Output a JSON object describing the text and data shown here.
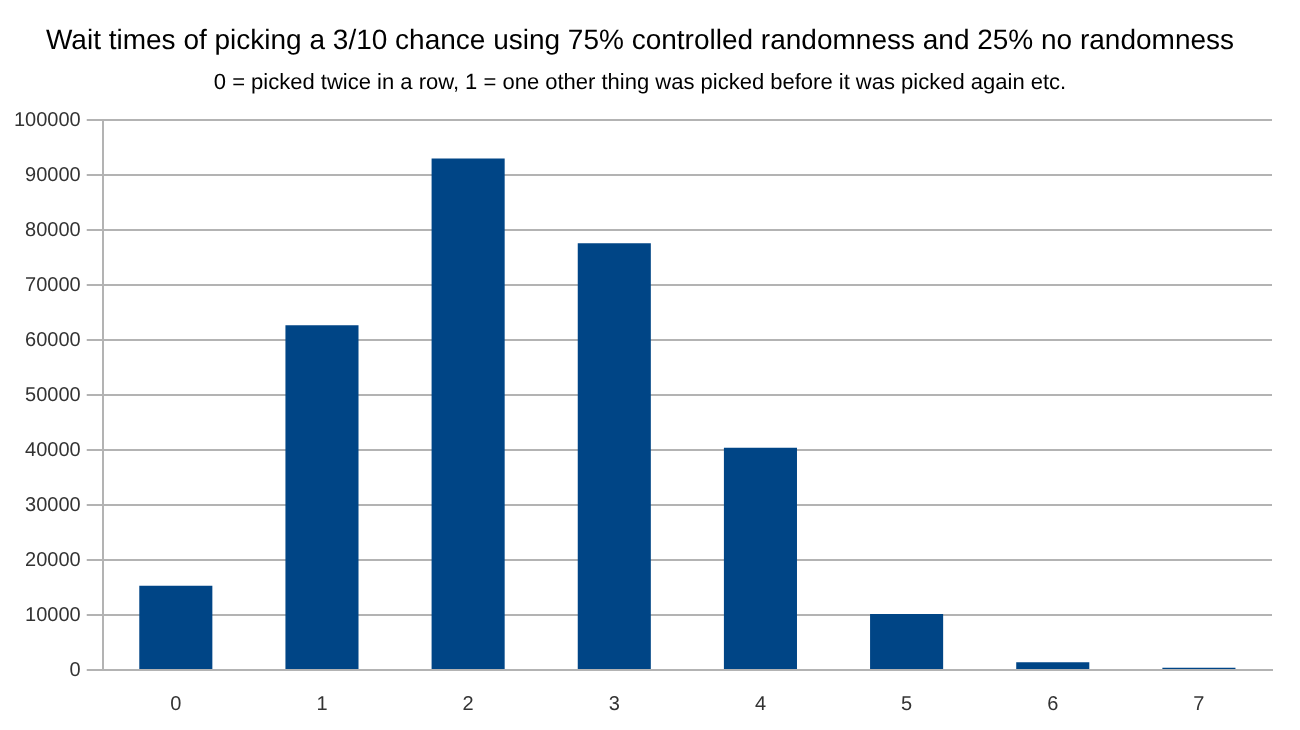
{
  "chart_data": {
    "type": "bar",
    "title": "Wait times of picking a 3/10 chance using 75% controlled randomness and 25% no randomness",
    "subtitle": "0 = picked twice in a row, 1 = one other thing was picked before it was picked again etc.",
    "categories": [
      "0",
      "1",
      "2",
      "3",
      "4",
      "5",
      "6",
      "7"
    ],
    "values": [
      15300,
      62700,
      93000,
      77600,
      40400,
      10200,
      1400,
      400
    ],
    "color": "#004586",
    "ylim": [
      0,
      100000
    ],
    "yticks": [
      0,
      10000,
      20000,
      30000,
      40000,
      50000,
      60000,
      70000,
      80000,
      90000,
      100000
    ],
    "grid": "y",
    "legend": false
  }
}
